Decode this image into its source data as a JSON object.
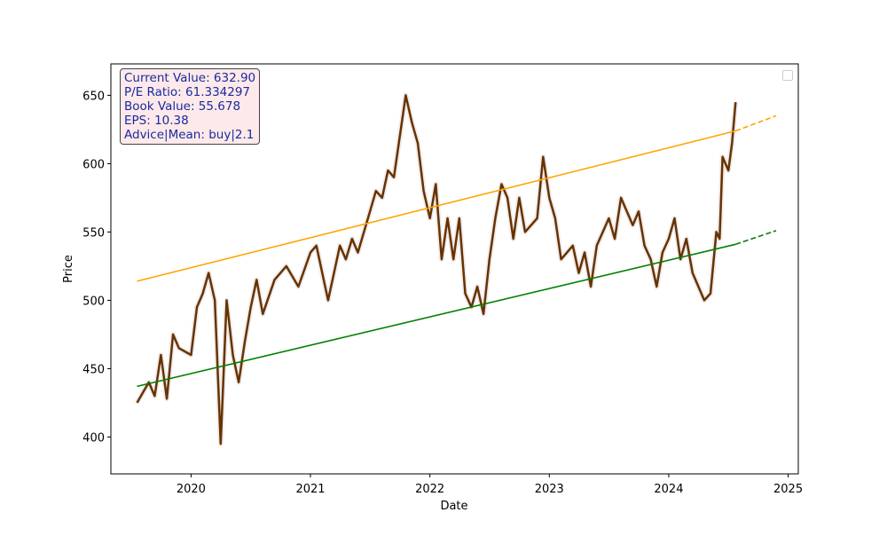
{
  "chart_data": {
    "type": "line",
    "title": "",
    "xlabel": "Date",
    "ylabel": "Price",
    "ylim": [
      373,
      673
    ],
    "xlim": [
      "2019-05-01",
      "2025-02-01"
    ],
    "x_ticks": [
      "2020",
      "2021",
      "2022",
      "2023",
      "2024",
      "2025"
    ],
    "y_ticks": [
      400,
      450,
      500,
      550,
      600,
      650
    ],
    "grid": false,
    "legend": {
      "placement": "top-right",
      "entries": []
    },
    "colors": {
      "price": "#663300",
      "upper_trend": "#ffa500",
      "lower_trend": "#008000",
      "info_text": "#1a2aa0",
      "info_bg": "#fde9e9"
    },
    "series": [
      {
        "key": "price",
        "points": [
          [
            "2019-07-20",
            425
          ],
          [
            "2019-08-25",
            440
          ],
          [
            "2019-09-12",
            430
          ],
          [
            "2019-10-01",
            460
          ],
          [
            "2019-10-19",
            428
          ],
          [
            "2019-11-07",
            475
          ],
          [
            "2019-11-25",
            465
          ],
          [
            "2020-01-01",
            460
          ],
          [
            "2020-01-19",
            495
          ],
          [
            "2020-02-06",
            505
          ],
          [
            "2020-02-24",
            520
          ],
          [
            "2020-03-14",
            500
          ],
          [
            "2020-04-01",
            395
          ],
          [
            "2020-04-19",
            500
          ],
          [
            "2020-05-08",
            460
          ],
          [
            "2020-05-26",
            440
          ],
          [
            "2020-06-14",
            470
          ],
          [
            "2020-07-02",
            495
          ],
          [
            "2020-07-20",
            515
          ],
          [
            "2020-08-08",
            490
          ],
          [
            "2020-09-13",
            515
          ],
          [
            "2020-10-19",
            525
          ],
          [
            "2020-11-25",
            510
          ],
          [
            "2021-01-01",
            535
          ],
          [
            "2021-01-19",
            540
          ],
          [
            "2021-02-06",
            520
          ],
          [
            "2021-02-24",
            500
          ],
          [
            "2021-04-01",
            540
          ],
          [
            "2021-04-19",
            530
          ],
          [
            "2021-05-08",
            545
          ],
          [
            "2021-05-26",
            535
          ],
          [
            "2021-07-02",
            565
          ],
          [
            "2021-07-20",
            580
          ],
          [
            "2021-08-08",
            575
          ],
          [
            "2021-08-26",
            595
          ],
          [
            "2021-09-13",
            590
          ],
          [
            "2021-10-19",
            650
          ],
          [
            "2021-11-07",
            630
          ],
          [
            "2021-11-25",
            615
          ],
          [
            "2021-12-13",
            580
          ],
          [
            "2022-01-01",
            560
          ],
          [
            "2022-01-19",
            585
          ],
          [
            "2022-02-06",
            530
          ],
          [
            "2022-02-24",
            560
          ],
          [
            "2022-03-14",
            530
          ],
          [
            "2022-04-01",
            560
          ],
          [
            "2022-04-19",
            505
          ],
          [
            "2022-05-08",
            495
          ],
          [
            "2022-05-26",
            510
          ],
          [
            "2022-06-14",
            490
          ],
          [
            "2022-07-02",
            530
          ],
          [
            "2022-07-20",
            560
          ],
          [
            "2022-08-08",
            585
          ],
          [
            "2022-08-26",
            575
          ],
          [
            "2022-09-13",
            545
          ],
          [
            "2022-10-01",
            575
          ],
          [
            "2022-10-19",
            550
          ],
          [
            "2022-11-25",
            560
          ],
          [
            "2022-12-13",
            605
          ],
          [
            "2023-01-01",
            575
          ],
          [
            "2023-01-19",
            560
          ],
          [
            "2023-02-06",
            530
          ],
          [
            "2023-03-14",
            540
          ],
          [
            "2023-04-01",
            520
          ],
          [
            "2023-04-19",
            535
          ],
          [
            "2023-05-08",
            510
          ],
          [
            "2023-05-26",
            540
          ],
          [
            "2023-07-02",
            560
          ],
          [
            "2023-07-20",
            545
          ],
          [
            "2023-08-08",
            575
          ],
          [
            "2023-08-26",
            565
          ],
          [
            "2023-09-13",
            555
          ],
          [
            "2023-10-01",
            565
          ],
          [
            "2023-10-19",
            540
          ],
          [
            "2023-11-07",
            530
          ],
          [
            "2023-11-25",
            510
          ],
          [
            "2023-12-13",
            535
          ],
          [
            "2024-01-01",
            545
          ],
          [
            "2024-01-19",
            560
          ],
          [
            "2024-02-06",
            530
          ],
          [
            "2024-02-24",
            545
          ],
          [
            "2024-03-14",
            520
          ],
          [
            "2024-04-01",
            510
          ],
          [
            "2024-04-19",
            500
          ],
          [
            "2024-05-08",
            505
          ],
          [
            "2024-05-26",
            550
          ],
          [
            "2024-06-05",
            545
          ],
          [
            "2024-06-14",
            605
          ],
          [
            "2024-07-02",
            595
          ],
          [
            "2024-07-13",
            615
          ],
          [
            "2024-07-24",
            645
          ]
        ]
      },
      {
        "key": "upper_trend",
        "points": [
          [
            "2019-07-20",
            514
          ],
          [
            "2024-07-24",
            624
          ]
        ],
        "projection": [
          [
            "2024-07-24",
            624
          ],
          [
            "2024-11-25",
            635
          ]
        ]
      },
      {
        "key": "lower_trend",
        "points": [
          [
            "2019-07-20",
            437
          ],
          [
            "2024-07-24",
            541
          ]
        ],
        "projection": [
          [
            "2024-07-24",
            541
          ],
          [
            "2024-11-25",
            551
          ]
        ]
      }
    ]
  },
  "info_box": {
    "current_value": "Current Value: 632.90",
    "pe_ratio": "P/E Ratio: 61.334297",
    "book_value": "Book Value: 55.678",
    "eps": "EPS: 10.38",
    "advice": "Advice|Mean: buy|2.1"
  }
}
